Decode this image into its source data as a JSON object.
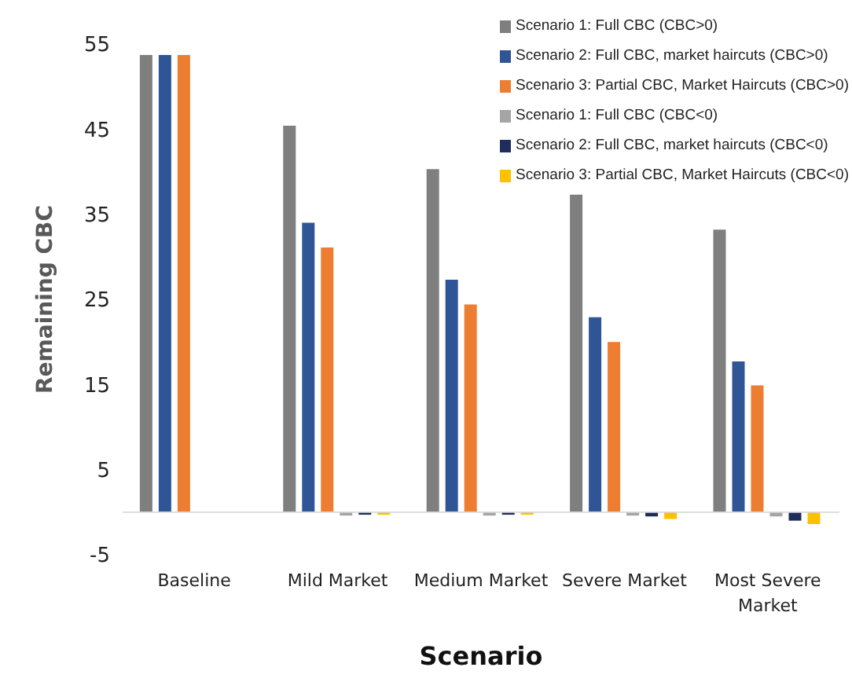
{
  "chart_data": {
    "type": "bar",
    "xlabel": "Scenario",
    "ylabel": "Remaining CBC",
    "categories": [
      "Baseline",
      "Mild Market",
      "Medium Market",
      "Severe Market",
      "Most Severe Market"
    ],
    "series": [
      {
        "name": "Scenario 1: Full CBC (CBC>0)",
        "color": "#7f7f7f",
        "values": [
          53.7,
          45.4,
          40.3,
          37.3,
          33.2
        ]
      },
      {
        "name": "Scenario 2:  Full CBC, market haircuts (CBC>0)",
        "color": "#2f5597",
        "values": [
          53.7,
          34.0,
          27.3,
          22.9,
          17.7
        ]
      },
      {
        "name": "Scenario 3: Partial CBC, Market Haircuts (CBC>0)",
        "color": "#ed7d31",
        "values": [
          53.7,
          31.1,
          24.4,
          20.0,
          14.9
        ]
      },
      {
        "name": "Scenario 1: Full CBC (CBC<0)",
        "color": "#a5a5a5",
        "values": [
          null,
          -0.4,
          -0.4,
          -0.4,
          -0.5
        ]
      },
      {
        "name": "Scenario 2:  Full CBC, market haircuts (CBC<0)",
        "color": "#1f2d5c",
        "values": [
          null,
          -0.3,
          -0.3,
          -0.5,
          -1.0
        ]
      },
      {
        "name": "Scenario 3: Partial CBC, Market Haircuts (CBC<0)",
        "color": "#ffc000",
        "values": [
          null,
          -0.3,
          -0.3,
          -0.8,
          -1.4
        ]
      }
    ],
    "ylim": [
      -5,
      55
    ],
    "yticks": [
      -5,
      5,
      15,
      25,
      35,
      45,
      55
    ],
    "grid": false,
    "legend": "top right"
  }
}
